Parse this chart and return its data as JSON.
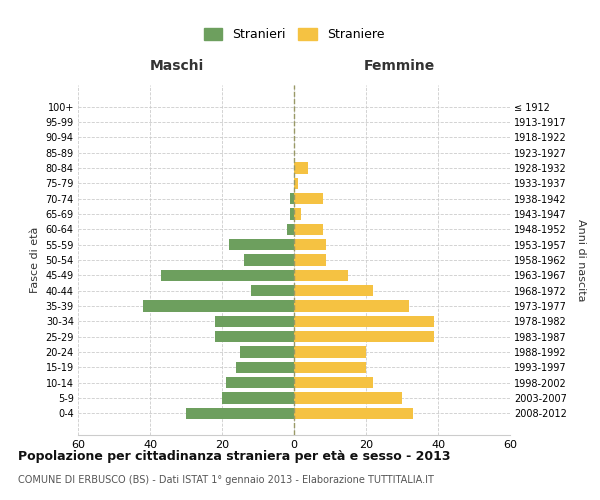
{
  "age_groups": [
    "0-4",
    "5-9",
    "10-14",
    "15-19",
    "20-24",
    "25-29",
    "30-34",
    "35-39",
    "40-44",
    "45-49",
    "50-54",
    "55-59",
    "60-64",
    "65-69",
    "70-74",
    "75-79",
    "80-84",
    "85-89",
    "90-94",
    "95-99",
    "100+"
  ],
  "birth_years": [
    "2008-2012",
    "2003-2007",
    "1998-2002",
    "1993-1997",
    "1988-1992",
    "1983-1987",
    "1978-1982",
    "1973-1977",
    "1968-1972",
    "1963-1967",
    "1958-1962",
    "1953-1957",
    "1948-1952",
    "1943-1947",
    "1938-1942",
    "1933-1937",
    "1928-1932",
    "1923-1927",
    "1918-1922",
    "1913-1917",
    "≤ 1912"
  ],
  "maschi": [
    30,
    20,
    19,
    16,
    15,
    22,
    22,
    42,
    12,
    37,
    14,
    18,
    2,
    1,
    1,
    0,
    0,
    0,
    0,
    0,
    0
  ],
  "femmine": [
    33,
    30,
    22,
    20,
    20,
    39,
    39,
    32,
    22,
    15,
    9,
    9,
    8,
    2,
    8,
    1,
    4,
    0,
    0,
    0,
    0
  ],
  "male_color": "#6d9f5e",
  "female_color": "#f5c242",
  "grid_color": "#cccccc",
  "center_line_color": "#999966",
  "title": "Popolazione per cittadinanza straniera per età e sesso - 2013",
  "subtitle": "COMUNE DI ERBUSCO (BS) - Dati ISTAT 1° gennaio 2013 - Elaborazione TUTTITALIA.IT",
  "label_maschi": "Maschi",
  "label_femmine": "Femmine",
  "ylabel_left": "Fasce di età",
  "ylabel_right": "Anni di nascita",
  "legend_male": "Stranieri",
  "legend_female": "Straniere",
  "xlim": 60
}
